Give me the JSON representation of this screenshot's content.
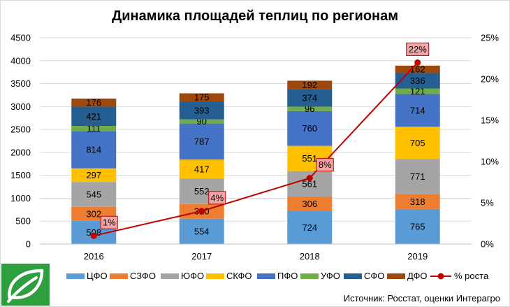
{
  "chart_data": {
    "type": "bar",
    "stacked": true,
    "title": "Динамика площадей теплиц по регионам",
    "categories": [
      "2016",
      "2017",
      "2018",
      "2019"
    ],
    "ylim": [
      0,
      4500
    ],
    "yticks": [
      0,
      500,
      1000,
      1500,
      2000,
      2500,
      3000,
      3500,
      4000,
      4500
    ],
    "y2lim": [
      0,
      0.25
    ],
    "y2ticks": [
      "0%",
      "5%",
      "10%",
      "15%",
      "20%",
      "25%"
    ],
    "grid": true,
    "legend_position": "bottom",
    "series": [
      {
        "name": "ЦФО",
        "color": "#5b9bd5",
        "values": [
          508,
          554,
          724,
          765
        ]
      },
      {
        "name": "СЗФО",
        "color": "#ed7d31",
        "values": [
          302,
          320,
          306,
          318
        ]
      },
      {
        "name": "ЮФО",
        "color": "#a5a5a5",
        "values": [
          545,
          552,
          561,
          771
        ]
      },
      {
        "name": "СКФО",
        "color": "#ffc000",
        "values": [
          297,
          417,
          551,
          705
        ]
      },
      {
        "name": "ПФО",
        "color": "#4472c4",
        "values": [
          814,
          787,
          760,
          714
        ]
      },
      {
        "name": "УФО",
        "color": "#70ad47",
        "values": [
          111,
          90,
          96,
          121
        ]
      },
      {
        "name": "СФО",
        "color": "#255e91",
        "values": [
          421,
          393,
          374,
          336
        ]
      },
      {
        "name": "ДФО",
        "color": "#9e480e",
        "values": [
          176,
          175,
          192,
          162
        ]
      }
    ],
    "line_series": {
      "name": "% роста",
      "color": "#c00000",
      "axis": "secondary",
      "values": [
        0.01,
        0.04,
        0.08,
        0.22
      ],
      "labels": [
        "1%",
        "4%",
        "8%",
        "22%"
      ]
    }
  },
  "source": "Источник: Росстат, оценки Интерагро"
}
